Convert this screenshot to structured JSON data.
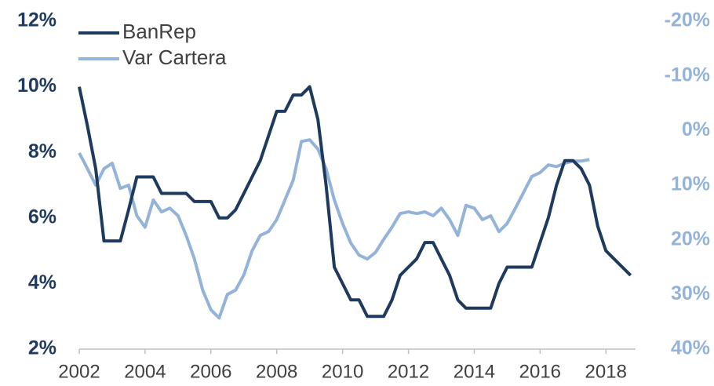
{
  "chart_data": {
    "type": "line",
    "x": [
      2002,
      2002.25,
      2002.5,
      2002.75,
      2003,
      2003.25,
      2003.5,
      2003.75,
      2004,
      2004.25,
      2004.5,
      2004.75,
      2005,
      2005.25,
      2005.5,
      2005.75,
      2006,
      2006.25,
      2006.5,
      2006.75,
      2007,
      2007.25,
      2007.5,
      2007.75,
      2008,
      2008.25,
      2008.5,
      2008.75,
      2009,
      2009.25,
      2009.5,
      2009.75,
      2010,
      2010.25,
      2010.5,
      2010.75,
      2011,
      2011.25,
      2011.5,
      2011.75,
      2012,
      2012.25,
      2012.5,
      2012.75,
      2013,
      2013.25,
      2013.5,
      2013.75,
      2014,
      2014.25,
      2014.5,
      2014.75,
      2015,
      2015.25,
      2015.5,
      2015.75,
      2016,
      2016.25,
      2016.5,
      2016.75,
      2017,
      2017.25,
      2017.5,
      2017.75,
      2018,
      2018.25,
      2018.5,
      2018.75
    ],
    "series": [
      {
        "name": "BanRep",
        "color": "#1f3a5f",
        "axis": "y",
        "values": [
          10,
          8.8,
          7.5,
          5.3,
          5.3,
          5.3,
          6.25,
          7.25,
          7.25,
          7.25,
          6.75,
          6.75,
          6.75,
          6.75,
          6.5,
          6.5,
          6.5,
          6,
          6,
          6.25,
          6.75,
          7.25,
          7.75,
          8.5,
          9.25,
          9.25,
          9.75,
          9.75,
          10,
          9,
          7,
          4.5,
          4,
          3.5,
          3.5,
          3,
          3,
          3,
          3.5,
          4.25,
          4.5,
          4.75,
          5.25,
          5.25,
          4.75,
          4.25,
          3.5,
          3.25,
          3.25,
          3.25,
          3.25,
          4,
          4.5,
          4.5,
          4.5,
          4.5,
          5.25,
          6,
          7,
          7.75,
          7.75,
          7.5,
          7,
          5.75,
          5,
          4.75,
          4.5,
          4.25
        ]
      },
      {
        "name": "Var Cartera",
        "color": "#93b3d9",
        "axis": "y2",
        "values": [
          4.1,
          7,
          10,
          7,
          6,
          10.6,
          10,
          15.6,
          17.7,
          12.7,
          14.9,
          14.2,
          15.6,
          19.2,
          23.5,
          29.2,
          32.8,
          34.3,
          30,
          29.2,
          26.4,
          22,
          19.2,
          18.5,
          16.3,
          12.7,
          9.1,
          2,
          1.7,
          3.4,
          7,
          12.7,
          17,
          20.6,
          22.8,
          23.5,
          22.3,
          19.9,
          17.7,
          15.2,
          14.9,
          15.2,
          14.9,
          15.6,
          14.2,
          16.3,
          19.2,
          13.7,
          14.2,
          16.3,
          15.6,
          18.5,
          17,
          14.2,
          11.3,
          8.4,
          7.7,
          6.3,
          6.6,
          6,
          5.6,
          5.6,
          5.3,
          null,
          null,
          null,
          null,
          null
        ]
      }
    ],
    "xlim": [
      2002,
      2018.9
    ],
    "xticks": [
      2002,
      2004,
      2006,
      2008,
      2010,
      2012,
      2014,
      2016,
      2018
    ],
    "ylim": [
      2,
      12
    ],
    "yticks": [
      {
        "value": 2,
        "label": "2%"
      },
      {
        "value": 4,
        "label": "4%"
      },
      {
        "value": 6,
        "label": "6%"
      },
      {
        "value": 8,
        "label": "8%"
      },
      {
        "value": 10,
        "label": "10%"
      },
      {
        "value": 12,
        "label": "12%"
      }
    ],
    "y2lim": [
      40,
      -20
    ],
    "y2ticks": [
      {
        "value": 40,
        "label": "40%"
      },
      {
        "value": 30,
        "label": "30%"
      },
      {
        "value": 20,
        "label": "20%"
      },
      {
        "value": 10,
        "label": "10%"
      },
      {
        "value": 0,
        "label": "0%"
      },
      {
        "value": -10,
        "label": "-10%"
      },
      {
        "value": -20,
        "label": "-20%"
      }
    ],
    "legend": "top-left"
  }
}
